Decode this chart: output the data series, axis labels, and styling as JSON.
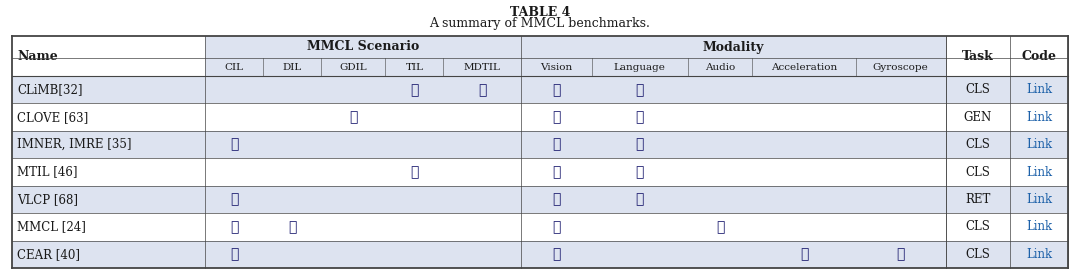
{
  "title_line1": "TABLE 4",
  "title_line2": "A summary of MMCL benchmarks.",
  "scenario_cols": [
    "CIL",
    "DIL",
    "GDIL",
    "TIL",
    "MDTIL"
  ],
  "modality_cols": [
    "Vision",
    "Language",
    "Audio",
    "Acceleration",
    "Gyroscope"
  ],
  "extra_cols": [
    "Task",
    "Code"
  ],
  "rows": [
    {
      "name": "CLiMB[32]",
      "CIL": "",
      "DIL": "",
      "GDIL": "",
      "TIL": "✓",
      "MDTIL": "✓",
      "Vision": "✓",
      "Language": "✓",
      "Audio": "",
      "Acceleration": "",
      "Gyroscope": "",
      "Task": "CLS",
      "Code": "Link"
    },
    {
      "name": "CLOVE [63]",
      "CIL": "",
      "DIL": "",
      "GDIL": "✓",
      "TIL": "",
      "MDTIL": "",
      "Vision": "✓",
      "Language": "✓",
      "Audio": "",
      "Acceleration": "",
      "Gyroscope": "",
      "Task": "GEN",
      "Code": "Link"
    },
    {
      "name": "IMNER, IMRE [35]",
      "CIL": "✓",
      "DIL": "",
      "GDIL": "",
      "TIL": "",
      "MDTIL": "",
      "Vision": "✓",
      "Language": "✓",
      "Audio": "",
      "Acceleration": "",
      "Gyroscope": "",
      "Task": "CLS",
      "Code": "Link"
    },
    {
      "name": "MTIL [46]",
      "CIL": "",
      "DIL": "",
      "GDIL": "",
      "TIL": "✓",
      "MDTIL": "",
      "Vision": "✓",
      "Language": "✓",
      "Audio": "",
      "Acceleration": "",
      "Gyroscope": "",
      "Task": "CLS",
      "Code": "Link"
    },
    {
      "name": "VLCP [68]",
      "CIL": "✓",
      "DIL": "",
      "GDIL": "",
      "TIL": "",
      "MDTIL": "",
      "Vision": "✓",
      "Language": "✓",
      "Audio": "",
      "Acceleration": "",
      "Gyroscope": "",
      "Task": "RET",
      "Code": "Link"
    },
    {
      "name": "MMCL [24]",
      "CIL": "✓",
      "DIL": "✓",
      "GDIL": "",
      "TIL": "",
      "MDTIL": "",
      "Vision": "✓",
      "Language": "",
      "Audio": "✓",
      "Acceleration": "",
      "Gyroscope": "",
      "Task": "CLS",
      "Code": "Link"
    },
    {
      "name": "CEAR [40]",
      "CIL": "✓",
      "DIL": "",
      "GDIL": "",
      "TIL": "",
      "MDTIL": "",
      "Vision": "✓",
      "Language": "",
      "Audio": "",
      "Acceleration": "✓",
      "Gyroscope": "✓",
      "Task": "CLS",
      "Code": "Link"
    }
  ],
  "row_bg_colors": [
    "#dde3f0",
    "#ffffff",
    "#dde3f0",
    "#ffffff",
    "#dde3f0",
    "#ffffff",
    "#dde3f0"
  ],
  "scenario_header_bg": "#dde3f0",
  "modality_header_bg": "#dde3f0",
  "check_color": "#1a1a6e",
  "text_color": "#1a1a1a",
  "link_color": "#1a5fa8",
  "border_color": "#444444",
  "bg_color": "#ffffff",
  "title_color": "#1a1a1a"
}
